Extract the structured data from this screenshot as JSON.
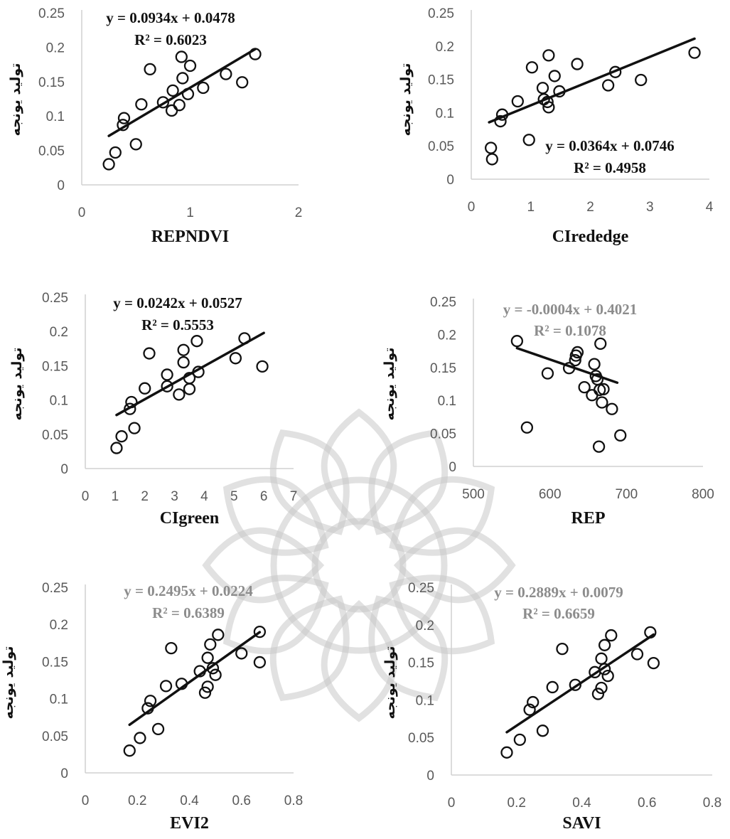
{
  "watermark": {
    "color": "#bdbdbd"
  },
  "chart_data": [
    {
      "type": "scatter",
      "xlabel": "REPNDVI",
      "ylabel": "تولید یونجه",
      "xlim": [
        0,
        2
      ],
      "ylim": [
        0,
        0.25
      ],
      "xticks": [
        "0",
        "1",
        "2"
      ],
      "yticks": [
        "0",
        "0.05",
        "0.1",
        "0.15",
        "0.2",
        "0.25"
      ],
      "trendline": {
        "slope": 0.0934,
        "intercept": 0.0478,
        "x_range": [
          0.25,
          1.6
        ]
      },
      "equation": "y = 0.0934x + 0.0478",
      "r2": "R² = 0.6023",
      "annotation_color": "#111111",
      "points": [
        {
          "x": 0.25,
          "y": 0.03
        },
        {
          "x": 0.31,
          "y": 0.047
        },
        {
          "x": 0.38,
          "y": 0.087
        },
        {
          "x": 0.39,
          "y": 0.097
        },
        {
          "x": 0.5,
          "y": 0.059
        },
        {
          "x": 0.55,
          "y": 0.117
        },
        {
          "x": 0.63,
          "y": 0.168
        },
        {
          "x": 0.75,
          "y": 0.12
        },
        {
          "x": 0.83,
          "y": 0.108
        },
        {
          "x": 0.84,
          "y": 0.137
        },
        {
          "x": 0.9,
          "y": 0.116
        },
        {
          "x": 0.92,
          "y": 0.186
        },
        {
          "x": 0.93,
          "y": 0.155
        },
        {
          "x": 0.98,
          "y": 0.132
        },
        {
          "x": 1.0,
          "y": 0.173
        },
        {
          "x": 1.12,
          "y": 0.141
        },
        {
          "x": 1.33,
          "y": 0.161
        },
        {
          "x": 1.48,
          "y": 0.149
        },
        {
          "x": 1.6,
          "y": 0.19
        }
      ]
    },
    {
      "type": "scatter",
      "xlabel": "CIrededge",
      "ylabel": "تولید یونجه",
      "xlim": [
        0,
        4
      ],
      "ylim": [
        0,
        0.25
      ],
      "xticks": [
        "0",
        "1",
        "2",
        "3",
        "4"
      ],
      "yticks": [
        "0",
        "0.05",
        "0.1",
        "0.15",
        "0.2",
        "0.25"
      ],
      "trendline": {
        "slope": 0.0364,
        "intercept": 0.0746,
        "x_range": [
          0.3,
          3.75
        ]
      },
      "equation": "y = 0.0364x + 0.0746",
      "r2": "R² = 0.4958",
      "annotation_color": "#111111",
      "points": [
        {
          "x": 0.33,
          "y": 0.047
        },
        {
          "x": 0.35,
          "y": 0.03
        },
        {
          "x": 0.49,
          "y": 0.087
        },
        {
          "x": 0.52,
          "y": 0.097
        },
        {
          "x": 0.78,
          "y": 0.117
        },
        {
          "x": 0.97,
          "y": 0.059
        },
        {
          "x": 1.02,
          "y": 0.168
        },
        {
          "x": 1.2,
          "y": 0.137
        },
        {
          "x": 1.22,
          "y": 0.12
        },
        {
          "x": 1.28,
          "y": 0.116
        },
        {
          "x": 1.3,
          "y": 0.108
        },
        {
          "x": 1.3,
          "y": 0.186
        },
        {
          "x": 1.4,
          "y": 0.155
        },
        {
          "x": 1.48,
          "y": 0.132
        },
        {
          "x": 1.78,
          "y": 0.173
        },
        {
          "x": 2.3,
          "y": 0.141
        },
        {
          "x": 2.42,
          "y": 0.161
        },
        {
          "x": 2.85,
          "y": 0.149
        },
        {
          "x": 3.75,
          "y": 0.19
        }
      ]
    },
    {
      "type": "scatter",
      "xlabel": "CIgreen",
      "ylabel": "تولید یونجه",
      "xlim": [
        0,
        7
      ],
      "ylim": [
        0,
        0.25
      ],
      "xticks": [
        "0",
        "1",
        "2",
        "3",
        "4",
        "5",
        "6",
        "7"
      ],
      "yticks": [
        "0",
        "0.05",
        "0.1",
        "0.15",
        "0.2",
        "0.25"
      ],
      "trendline": {
        "slope": 0.0242,
        "intercept": 0.0527,
        "x_range": [
          1.05,
          6.0
        ]
      },
      "equation": "y = 0.0242x + 0.0527",
      "r2": "R² = 0.5553",
      "annotation_color": "#111111",
      "points": [
        {
          "x": 1.05,
          "y": 0.03
        },
        {
          "x": 1.22,
          "y": 0.047
        },
        {
          "x": 1.5,
          "y": 0.087
        },
        {
          "x": 1.55,
          "y": 0.097
        },
        {
          "x": 1.65,
          "y": 0.059
        },
        {
          "x": 2.0,
          "y": 0.117
        },
        {
          "x": 2.15,
          "y": 0.168
        },
        {
          "x": 2.75,
          "y": 0.12
        },
        {
          "x": 2.75,
          "y": 0.137
        },
        {
          "x": 3.15,
          "y": 0.108
        },
        {
          "x": 3.3,
          "y": 0.155
        },
        {
          "x": 3.3,
          "y": 0.173
        },
        {
          "x": 3.5,
          "y": 0.116
        },
        {
          "x": 3.5,
          "y": 0.132
        },
        {
          "x": 3.75,
          "y": 0.186
        },
        {
          "x": 3.8,
          "y": 0.141
        },
        {
          "x": 5.05,
          "y": 0.161
        },
        {
          "x": 5.35,
          "y": 0.19
        },
        {
          "x": 5.95,
          "y": 0.149
        }
      ]
    },
    {
      "type": "scatter",
      "xlabel": "REP",
      "ylabel": "تولید یونجه",
      "xlim": [
        500,
        800
      ],
      "ylim": [
        0,
        0.25
      ],
      "xticks": [
        "500",
        "600",
        "700",
        "800"
      ],
      "yticks": [
        "0",
        "0.05",
        "0.1",
        "0.15",
        "0.2",
        "0.25"
      ],
      "trendline": {
        "slope": -0.0004,
        "intercept": 0.4021,
        "x_range": [
          557,
          688
        ]
      },
      "equation": "y = -0.0004x + 0.4021",
      "r2": "R² = 0.1078",
      "annotation_color": "#8c8c8c",
      "points": [
        {
          "x": 557,
          "y": 0.19
        },
        {
          "x": 570,
          "y": 0.059
        },
        {
          "x": 597,
          "y": 0.141
        },
        {
          "x": 625,
          "y": 0.149
        },
        {
          "x": 633,
          "y": 0.161
        },
        {
          "x": 634,
          "y": 0.168
        },
        {
          "x": 636,
          "y": 0.173
        },
        {
          "x": 645,
          "y": 0.12
        },
        {
          "x": 655,
          "y": 0.108
        },
        {
          "x": 658,
          "y": 0.155
        },
        {
          "x": 660,
          "y": 0.137
        },
        {
          "x": 662,
          "y": 0.132
        },
        {
          "x": 664,
          "y": 0.03
        },
        {
          "x": 665,
          "y": 0.116
        },
        {
          "x": 666,
          "y": 0.186
        },
        {
          "x": 668,
          "y": 0.097
        },
        {
          "x": 670,
          "y": 0.117
        },
        {
          "x": 681,
          "y": 0.087
        },
        {
          "x": 692,
          "y": 0.047
        }
      ]
    },
    {
      "type": "scatter",
      "xlabel": "EVI2",
      "ylabel": "تولید یونجه",
      "xlim": [
        0,
        0.8
      ],
      "ylim": [
        0,
        0.25
      ],
      "xticks": [
        "0",
        "0.2",
        "0.4",
        "0.6",
        "0.8"
      ],
      "yticks": [
        "0",
        "0.05",
        "0.1",
        "0.15",
        "0.2",
        "0.25"
      ],
      "trendline": {
        "slope": 0.2495,
        "intercept": 0.0224,
        "x_range": [
          0.17,
          0.67
        ]
      },
      "equation": "y = 0.2495x + 0.0224",
      "r2": "R² = 0.6389",
      "annotation_color": "#8c8c8c",
      "points": [
        {
          "x": 0.17,
          "y": 0.03
        },
        {
          "x": 0.21,
          "y": 0.047
        },
        {
          "x": 0.24,
          "y": 0.087
        },
        {
          "x": 0.25,
          "y": 0.097
        },
        {
          "x": 0.28,
          "y": 0.059
        },
        {
          "x": 0.31,
          "y": 0.117
        },
        {
          "x": 0.33,
          "y": 0.168
        },
        {
          "x": 0.37,
          "y": 0.12
        },
        {
          "x": 0.44,
          "y": 0.137
        },
        {
          "x": 0.46,
          "y": 0.108
        },
        {
          "x": 0.47,
          "y": 0.116
        },
        {
          "x": 0.47,
          "y": 0.155
        },
        {
          "x": 0.48,
          "y": 0.173
        },
        {
          "x": 0.49,
          "y": 0.141
        },
        {
          "x": 0.5,
          "y": 0.132
        },
        {
          "x": 0.51,
          "y": 0.186
        },
        {
          "x": 0.6,
          "y": 0.161
        },
        {
          "x": 0.67,
          "y": 0.149
        },
        {
          "x": 0.67,
          "y": 0.19
        }
      ]
    },
    {
      "type": "scatter",
      "xlabel": "SAVI",
      "ylabel": "تولید یونجه",
      "xlim": [
        0,
        0.8
      ],
      "ylim": [
        0,
        0.25
      ],
      "xticks": [
        "0",
        "0.2",
        "0.4",
        "0.6",
        "0.8"
      ],
      "yticks": [
        "0",
        "0.05",
        "0.1",
        "0.15",
        "0.2",
        "0.25"
      ],
      "trendline": {
        "slope": 0.2889,
        "intercept": 0.0079,
        "x_range": [
          0.17,
          0.62
        ]
      },
      "equation": "y = 0.2889x + 0.0079",
      "r2": "R² = 0.6659",
      "annotation_color": "#8c8c8c",
      "points": [
        {
          "x": 0.17,
          "y": 0.03
        },
        {
          "x": 0.21,
          "y": 0.047
        },
        {
          "x": 0.24,
          "y": 0.087
        },
        {
          "x": 0.25,
          "y": 0.097
        },
        {
          "x": 0.28,
          "y": 0.059
        },
        {
          "x": 0.31,
          "y": 0.117
        },
        {
          "x": 0.34,
          "y": 0.168
        },
        {
          "x": 0.38,
          "y": 0.12
        },
        {
          "x": 0.44,
          "y": 0.137
        },
        {
          "x": 0.45,
          "y": 0.108
        },
        {
          "x": 0.46,
          "y": 0.116
        },
        {
          "x": 0.46,
          "y": 0.155
        },
        {
          "x": 0.47,
          "y": 0.173
        },
        {
          "x": 0.47,
          "y": 0.141
        },
        {
          "x": 0.48,
          "y": 0.132
        },
        {
          "x": 0.49,
          "y": 0.186
        },
        {
          "x": 0.57,
          "y": 0.161
        },
        {
          "x": 0.61,
          "y": 0.19
        },
        {
          "x": 0.62,
          "y": 0.149
        }
      ]
    }
  ]
}
